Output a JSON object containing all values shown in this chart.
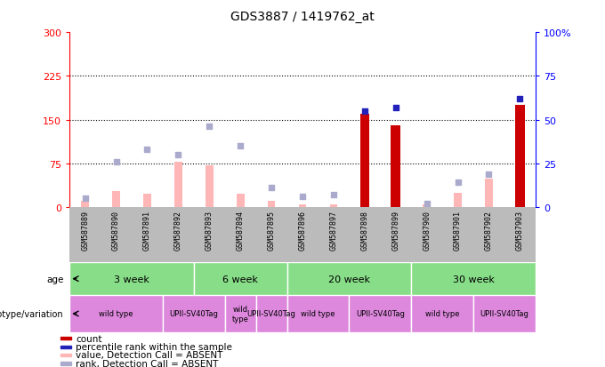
{
  "title": "GDS3887 / 1419762_at",
  "samples": [
    "GSM587889",
    "GSM587890",
    "GSM587891",
    "GSM587892",
    "GSM587893",
    "GSM587894",
    "GSM587895",
    "GSM587896",
    "GSM587897",
    "GSM587898",
    "GSM587899",
    "GSM587900",
    "GSM587901",
    "GSM587902",
    "GSM587903"
  ],
  "count_values": [
    10,
    0,
    0,
    0,
    0,
    0,
    0,
    0,
    0,
    160,
    140,
    0,
    0,
    0,
    175
  ],
  "count_is_present": [
    false,
    false,
    false,
    false,
    false,
    false,
    false,
    false,
    false,
    true,
    true,
    false,
    false,
    false,
    true
  ],
  "value_absent": [
    10,
    28,
    22,
    78,
    72,
    22,
    10,
    5,
    5,
    0,
    0,
    5,
    25,
    48,
    0
  ],
  "percentile_rank_present": [
    0,
    0,
    0,
    0,
    0,
    0,
    0,
    0,
    0,
    55,
    57,
    0,
    0,
    0,
    62
  ],
  "rank_absent": [
    5,
    26,
    33,
    30,
    46,
    35,
    11,
    6,
    7,
    0,
    0,
    2,
    14,
    19,
    0
  ],
  "ylim_left": [
    0,
    300
  ],
  "ylim_right": [
    0,
    100
  ],
  "yticks_left": [
    0,
    75,
    150,
    225,
    300
  ],
  "yticks_right": [
    0,
    25,
    50,
    75,
    100
  ],
  "hlines": [
    75,
    150,
    225
  ],
  "age_groups": [
    {
      "label": "3 week",
      "start": 0,
      "end": 4
    },
    {
      "label": "6 week",
      "start": 4,
      "end": 7
    },
    {
      "label": "20 week",
      "start": 7,
      "end": 11
    },
    {
      "label": "30 week",
      "start": 11,
      "end": 15
    }
  ],
  "genotype_groups": [
    {
      "label": "wild type",
      "start": 0,
      "end": 3
    },
    {
      "label": "UPII-SV40Tag",
      "start": 3,
      "end": 5
    },
    {
      "label": "wild\ntype",
      "start": 5,
      "end": 6
    },
    {
      "label": "UPII-SV40Tag",
      "start": 6,
      "end": 7
    },
    {
      "label": "wild type",
      "start": 7,
      "end": 9
    },
    {
      "label": "UPII-SV40Tag",
      "start": 9,
      "end": 11
    },
    {
      "label": "wild type",
      "start": 11,
      "end": 13
    },
    {
      "label": "UPII-SV40Tag",
      "start": 13,
      "end": 15
    }
  ],
  "count_color": "#cc0000",
  "value_absent_color": "#ffb6b6",
  "rank_present_color": "#2222bb",
  "rank_absent_color": "#aaaacc",
  "age_bg_color": "#88dd88",
  "genotype_bg_color": "#dd88dd",
  "sample_bg_color": "#bbbbbb",
  "legend_items": [
    {
      "label": "count",
      "color": "#cc0000"
    },
    {
      "label": "percentile rank within the sample",
      "color": "#2222bb"
    },
    {
      "label": "value, Detection Call = ABSENT",
      "color": "#ffb6b6"
    },
    {
      "label": "rank, Detection Call = ABSENT",
      "color": "#aaaacc"
    }
  ]
}
